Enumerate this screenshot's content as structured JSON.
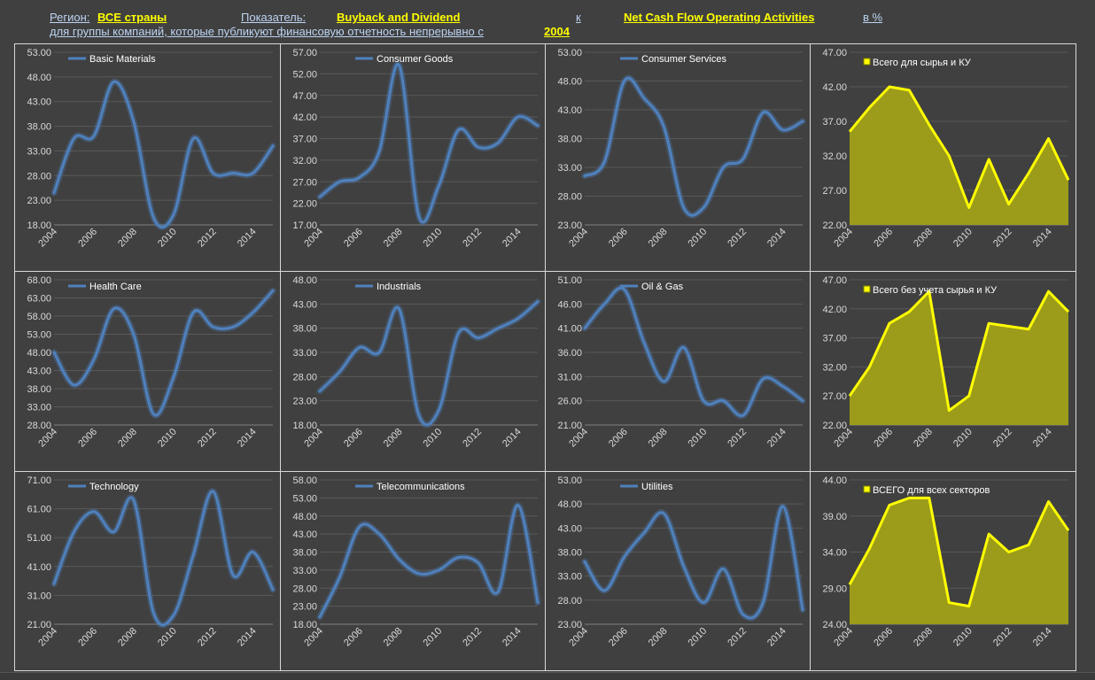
{
  "header": {
    "region_label": "Регион:",
    "region_value": "ВСЕ страны",
    "indicator_label": "Показатель:",
    "indicator_value": "Buyback and Dividend",
    "to_label": "к",
    "denominator_value": "Net Cash Flow Operating Activities",
    "unit_label": "в %",
    "subtitle": "для группы компаний, которые публикуют финансовую отчетность непрерывно с",
    "start_year": "2004"
  },
  "colors": {
    "line": "#4f81bd",
    "total_line": "#ffff00",
    "total_fill": "#9c9c1a",
    "background": "#404040"
  },
  "chart_data": [
    {
      "type": "line",
      "legend": "Basic Materials",
      "x": [
        2004,
        2005,
        2006,
        2007,
        2008,
        2009,
        2010,
        2011,
        2012,
        2013,
        2014,
        2015
      ],
      "values": [
        24.5,
        35.5,
        36,
        47,
        39,
        19.5,
        20,
        35.5,
        28.5,
        28.5,
        28.5,
        34
      ],
      "yticks": [
        "53.00",
        "48.00",
        "43.00",
        "38.00",
        "33.00",
        "28.00",
        "23.00",
        "18.00"
      ],
      "ylim": [
        18,
        53
      ],
      "xticks": [
        "2004",
        "2006",
        "2008",
        "2010",
        "2012",
        "2014"
      ]
    },
    {
      "type": "line",
      "legend": "Consumer Goods",
      "x": [
        2004,
        2005,
        2006,
        2007,
        2008,
        2009,
        2010,
        2011,
        2012,
        2013,
        2014,
        2015
      ],
      "values": [
        23.5,
        27,
        28,
        34,
        54,
        19,
        26,
        39,
        35,
        36,
        42,
        40
      ],
      "yticks": [
        "57.00",
        "52.00",
        "47.00",
        "42.00",
        "37.00",
        "32.00",
        "27.00",
        "22.00",
        "17.00"
      ],
      "ylim": [
        17,
        57
      ],
      "xticks": [
        "2004",
        "2006",
        "2008",
        "2010",
        "2012",
        "2014"
      ]
    },
    {
      "type": "line",
      "legend": "Consumer Services",
      "x": [
        2004,
        2005,
        2006,
        2007,
        2008,
        2009,
        2010,
        2011,
        2012,
        2013,
        2014,
        2015
      ],
      "values": [
        31.5,
        34,
        48,
        45,
        40,
        26,
        26,
        33,
        34.5,
        42.5,
        39.5,
        41
      ],
      "yticks": [
        "53.00",
        "48.00",
        "43.00",
        "38.00",
        "33.00",
        "28.00",
        "23.00"
      ],
      "ylim": [
        23,
        53
      ],
      "xticks": [
        "2004",
        "2006",
        "2008",
        "2010",
        "2012",
        "2014"
      ]
    },
    {
      "type": "area",
      "legend": "Всего для сырья и КУ",
      "x": [
        2004,
        2005,
        2006,
        2007,
        2008,
        2009,
        2010,
        2011,
        2012,
        2013,
        2014,
        2015
      ],
      "values": [
        35.5,
        39,
        42,
        41.5,
        36.5,
        32,
        24.5,
        31.5,
        25,
        29.5,
        34.5,
        28.5
      ],
      "yticks": [
        "47.00",
        "42.00",
        "37.00",
        "32.00",
        "27.00",
        "22.00"
      ],
      "ylim": [
        22,
        47
      ],
      "xticks": [
        "2004",
        "2006",
        "2008",
        "2010",
        "2012",
        "2014"
      ]
    },
    {
      "type": "line",
      "legend": "Health Care",
      "x": [
        2004,
        2005,
        2006,
        2007,
        2008,
        2009,
        2010,
        2011,
        2012,
        2013,
        2014,
        2015
      ],
      "values": [
        48,
        39,
        46,
        60,
        53,
        31,
        41,
        59,
        55,
        55,
        59,
        65
      ],
      "yticks": [
        "68.00",
        "63.00",
        "58.00",
        "53.00",
        "48.00",
        "43.00",
        "38.00",
        "33.00",
        "28.00"
      ],
      "ylim": [
        28,
        68
      ],
      "xticks": [
        "2004",
        "2006",
        "2008",
        "2010",
        "2012",
        "2014"
      ]
    },
    {
      "type": "line",
      "legend": "Industrials",
      "x": [
        2004,
        2005,
        2006,
        2007,
        2008,
        2009,
        2010,
        2011,
        2012,
        2013,
        2014,
        2015
      ],
      "values": [
        25,
        29,
        34,
        33,
        42,
        20,
        21,
        37,
        36,
        38,
        40,
        43.5
      ],
      "yticks": [
        "48.00",
        "43.00",
        "38.00",
        "33.00",
        "28.00",
        "23.00",
        "18.00"
      ],
      "ylim": [
        18,
        48
      ],
      "xticks": [
        "2004",
        "2006",
        "2008",
        "2010",
        "2012",
        "2014"
      ]
    },
    {
      "type": "line",
      "legend": "Oil & Gas",
      "x": [
        2004,
        2005,
        2006,
        2007,
        2008,
        2009,
        2010,
        2011,
        2012,
        2013,
        2014,
        2015
      ],
      "values": [
        41,
        46,
        49,
        38,
        30,
        37,
        26,
        26,
        23,
        30.5,
        29,
        26
      ],
      "yticks": [
        "51.00",
        "46.00",
        "41.00",
        "36.00",
        "31.00",
        "26.00",
        "21.00"
      ],
      "ylim": [
        21,
        51
      ],
      "xticks": [
        "2004",
        "2006",
        "2008",
        "2010",
        "2012",
        "2014"
      ]
    },
    {
      "type": "area",
      "legend": "Всего без учета сырья и КУ",
      "x": [
        2004,
        2005,
        2006,
        2007,
        2008,
        2009,
        2010,
        2011,
        2012,
        2013,
        2014,
        2015
      ],
      "values": [
        27,
        32,
        39.5,
        41.5,
        45,
        24.5,
        27,
        39.5,
        39,
        38.5,
        45,
        41.5
      ],
      "yticks": [
        "47.00",
        "42.00",
        "37.00",
        "32.00",
        "27.00",
        "22.00"
      ],
      "ylim": [
        22,
        47
      ],
      "xticks": [
        "2004",
        "2006",
        "2008",
        "2010",
        "2012",
        "2014"
      ]
    },
    {
      "type": "line",
      "legend": "Technology",
      "x": [
        2004,
        2005,
        2006,
        2007,
        2008,
        2009,
        2010,
        2011,
        2012,
        2013,
        2014,
        2015
      ],
      "values": [
        35,
        53,
        60,
        53,
        64,
        25,
        24,
        45,
        67,
        38,
        46,
        33
      ],
      "yticks": [
        "71.00",
        "61.00",
        "51.00",
        "41.00",
        "31.00",
        "21.00"
      ],
      "ylim": [
        21,
        71
      ],
      "xticks": [
        "2004",
        "2006",
        "2008",
        "2010",
        "2012",
        "2014"
      ]
    },
    {
      "type": "line",
      "legend": "Telecommunications",
      "x": [
        2004,
        2005,
        2006,
        2007,
        2008,
        2009,
        2010,
        2011,
        2012,
        2013,
        2014,
        2015
      ],
      "values": [
        20,
        31,
        45,
        43,
        36,
        32,
        33,
        36.5,
        35,
        27,
        51,
        24
      ],
      "yticks": [
        "58.00",
        "53.00",
        "48.00",
        "43.00",
        "38.00",
        "33.00",
        "28.00",
        "23.00",
        "18.00"
      ],
      "ylim": [
        18,
        58
      ],
      "xticks": [
        "2004",
        "2006",
        "2008",
        "2010",
        "2012",
        "2014"
      ]
    },
    {
      "type": "line",
      "legend": "Utilities",
      "x": [
        2004,
        2005,
        2006,
        2007,
        2008,
        2009,
        2010,
        2011,
        2012,
        2013,
        2014,
        2015
      ],
      "values": [
        36,
        30,
        37,
        42,
        46,
        35,
        27.5,
        34.5,
        25,
        27.5,
        47.5,
        26
      ],
      "yticks": [
        "53.00",
        "48.00",
        "43.00",
        "38.00",
        "33.00",
        "28.00",
        "23.00"
      ],
      "ylim": [
        23,
        53
      ],
      "xticks": [
        "2004",
        "2006",
        "2008",
        "2010",
        "2012",
        "2014"
      ]
    },
    {
      "type": "area",
      "legend": "ВСЕГО для всех секторов",
      "x": [
        2004,
        2005,
        2006,
        2007,
        2008,
        2009,
        2010,
        2011,
        2012,
        2013,
        2014,
        2015
      ],
      "values": [
        29.5,
        34.5,
        40.5,
        41.5,
        41.5,
        27,
        26.5,
        36.5,
        34,
        35,
        41,
        37
      ],
      "yticks": [
        "44.00",
        "39.00",
        "34.00",
        "29.00",
        "24.00"
      ],
      "ylim": [
        24,
        44
      ],
      "xticks": [
        "2004",
        "2006",
        "2008",
        "2010",
        "2012",
        "2014"
      ]
    }
  ]
}
